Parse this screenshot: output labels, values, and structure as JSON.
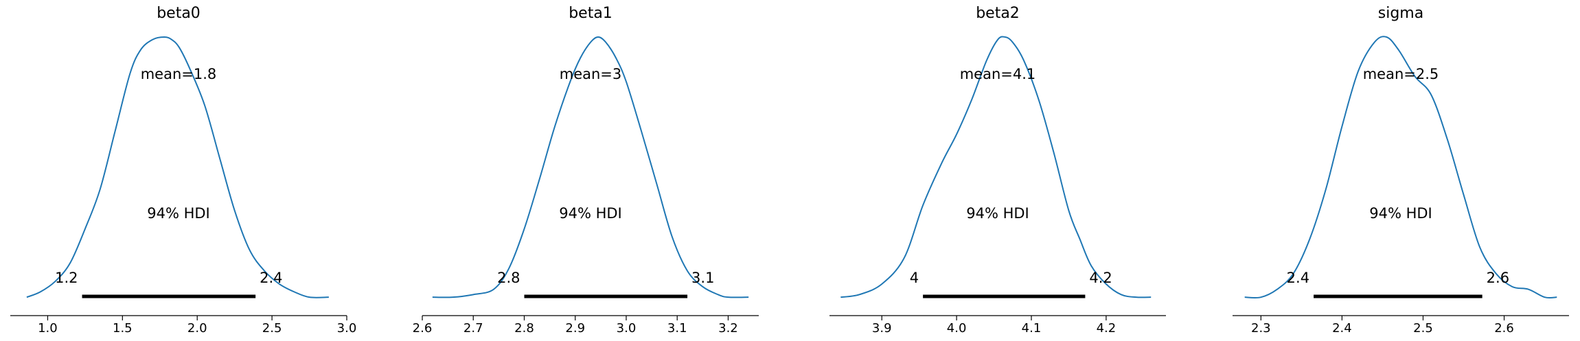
{
  "chart_data": [
    {
      "type": "line",
      "title": "beta0",
      "mean_label": "mean=1.8",
      "hdi_label": "94% HDI",
      "hdi_lower_label": "1.2",
      "hdi_upper_label": "2.4",
      "hdi_interval": [
        1.23,
        2.39
      ],
      "xlim": [
        0.75,
        3.0
      ],
      "xticks": [
        1.0,
        1.5,
        2.0,
        2.5,
        3.0
      ],
      "xtick_labels": [
        "1.0",
        "1.5",
        "2.0",
        "2.5",
        "3.0"
      ],
      "series": [
        {
          "x": [
            0.86,
            0.95,
            1.05,
            1.15,
            1.25,
            1.35,
            1.45,
            1.55,
            1.62,
            1.7,
            1.78,
            1.83,
            1.88,
            1.95,
            2.05,
            2.15,
            2.25,
            2.35,
            2.45,
            2.55,
            2.65,
            2.75,
            2.88
          ],
          "y": [
            0.01,
            0.03,
            0.07,
            0.14,
            0.27,
            0.42,
            0.64,
            0.86,
            0.95,
            0.99,
            1.0,
            0.99,
            0.96,
            0.88,
            0.74,
            0.54,
            0.34,
            0.19,
            0.11,
            0.06,
            0.03,
            0.01,
            0.01
          ]
        }
      ]
    },
    {
      "type": "line",
      "title": "beta1",
      "mean_label": "mean=3",
      "hdi_label": "94% HDI",
      "hdi_lower_label": "2.8",
      "hdi_upper_label": "3.1",
      "hdi_interval": [
        2.8,
        3.12
      ],
      "xlim": [
        2.6,
        3.26
      ],
      "xticks": [
        2.6,
        2.7,
        2.8,
        2.9,
        3.0,
        3.1,
        3.2
      ],
      "xtick_labels": [
        "2.6",
        "2.7",
        "2.8",
        "2.9",
        "3.0",
        "3.1",
        "3.2"
      ],
      "series": [
        {
          "x": [
            2.62,
            2.66,
            2.7,
            2.74,
            2.77,
            2.8,
            2.83,
            2.86,
            2.89,
            2.91,
            2.93,
            2.945,
            2.96,
            2.98,
            3.0,
            3.03,
            3.06,
            3.09,
            3.12,
            3.15,
            3.18,
            3.2,
            3.24
          ],
          "y": [
            0.01,
            0.01,
            0.02,
            0.04,
            0.12,
            0.27,
            0.46,
            0.66,
            0.83,
            0.92,
            0.98,
            1.0,
            0.98,
            0.92,
            0.83,
            0.64,
            0.44,
            0.24,
            0.11,
            0.05,
            0.02,
            0.01,
            0.01
          ]
        }
      ]
    },
    {
      "type": "line",
      "title": "beta2",
      "mean_label": "mean=4.1",
      "hdi_label": "94% HDI",
      "hdi_lower_label": "4",
      "hdi_upper_label": "4.2",
      "hdi_interval": [
        3.955,
        4.172
      ],
      "xlim": [
        3.83,
        4.28
      ],
      "xticks": [
        3.9,
        4.0,
        4.1,
        4.2
      ],
      "xtick_labels": [
        "3.9",
        "4.0",
        "4.1",
        "4.2"
      ],
      "series": [
        {
          "x": [
            3.845,
            3.87,
            3.9,
            3.93,
            3.955,
            3.98,
            4.0,
            4.02,
            4.04,
            4.055,
            4.065,
            4.075,
            4.09,
            4.11,
            4.13,
            4.15,
            4.165,
            4.18,
            4.2,
            4.22,
            4.24,
            4.26
          ],
          "y": [
            0.01,
            0.02,
            0.06,
            0.16,
            0.36,
            0.52,
            0.63,
            0.76,
            0.91,
            0.99,
            1.0,
            0.98,
            0.91,
            0.76,
            0.56,
            0.34,
            0.23,
            0.13,
            0.06,
            0.02,
            0.01,
            0.01
          ]
        }
      ]
    },
    {
      "type": "line",
      "title": "sigma",
      "mean_label": "mean=2.5",
      "hdi_label": "94% HDI",
      "hdi_lower_label": "2.4",
      "hdi_upper_label": "2.6",
      "hdi_interval": [
        2.365,
        2.573
      ],
      "xlim": [
        2.265,
        2.68
      ],
      "xticks": [
        2.3,
        2.4,
        2.5,
        2.6
      ],
      "xtick_labels": [
        "2.3",
        "2.4",
        "2.5",
        "2.6"
      ],
      "series": [
        {
          "x": [
            2.28,
            2.3,
            2.32,
            2.34,
            2.36,
            2.38,
            2.4,
            2.42,
            2.44,
            2.455,
            2.47,
            2.49,
            2.51,
            2.53,
            2.55,
            2.57,
            2.59,
            2.61,
            2.63,
            2.65,
            2.665
          ],
          "y": [
            0.01,
            0.01,
            0.04,
            0.1,
            0.23,
            0.42,
            0.66,
            0.87,
            0.98,
            1.0,
            0.95,
            0.85,
            0.78,
            0.61,
            0.4,
            0.2,
            0.1,
            0.05,
            0.04,
            0.01,
            0.01
          ]
        }
      ]
    }
  ]
}
